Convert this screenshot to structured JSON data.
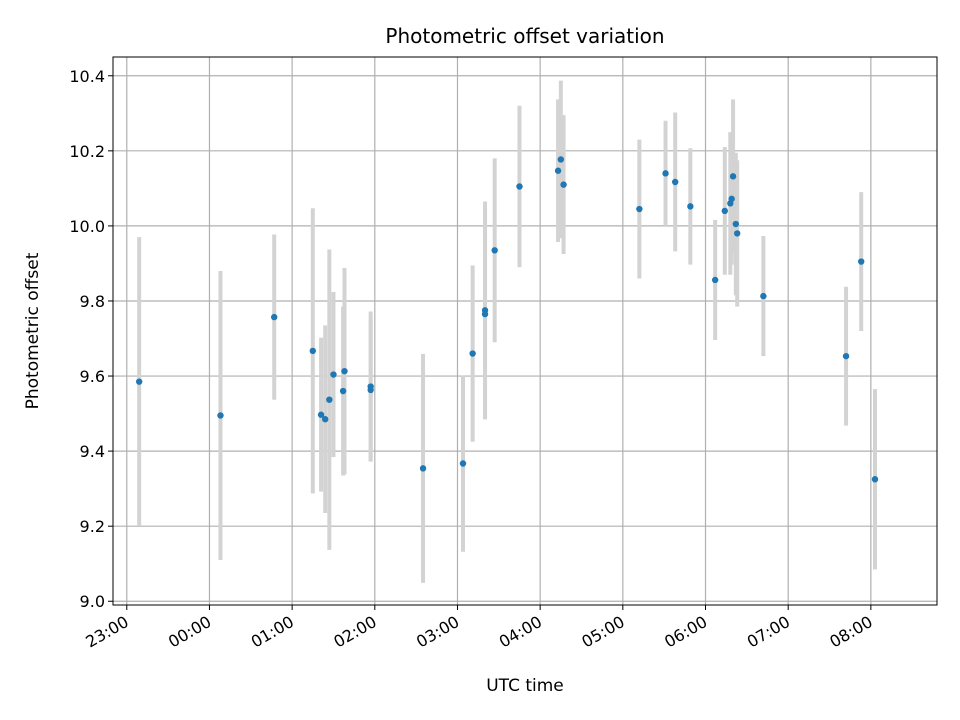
{
  "chart_data": {
    "type": "scatter",
    "title": "Photometric offset variation",
    "xlabel": "UTC time",
    "ylabel": "Photometric offset",
    "grid": true,
    "legend": "none",
    "x_unit": "UTC time (HH:MM)",
    "xlim": [
      "22:50",
      "08:48"
    ],
    "ylim": [
      8.99,
      10.45
    ],
    "x_ticks": [
      "23:00",
      "00:00",
      "01:00",
      "02:00",
      "03:00",
      "04:00",
      "05:00",
      "06:00",
      "07:00",
      "08:00"
    ],
    "y_ticks": [
      "9.0",
      "9.2",
      "9.4",
      "9.6",
      "9.8",
      "10.0",
      "10.2",
      "10.4"
    ],
    "colors": {
      "marker": "#1f77b4",
      "errorbar": "#d3d3d3",
      "grid": "#b0b0b0"
    },
    "points": [
      {
        "x": "23:09",
        "y": 9.585,
        "err": 0.385
      },
      {
        "x": "00:08",
        "y": 9.495,
        "err": 0.385
      },
      {
        "x": "00:47",
        "y": 9.757,
        "err": 0.22
      },
      {
        "x": "01:15",
        "y": 9.667,
        "err": 0.38
      },
      {
        "x": "01:21",
        "y": 9.497,
        "err": 0.205
      },
      {
        "x": "01:24",
        "y": 9.485,
        "err": 0.25
      },
      {
        "x": "01:27",
        "y": 9.537,
        "err": 0.4
      },
      {
        "x": "01:30",
        "y": 9.604,
        "err": 0.22
      },
      {
        "x": "01:37",
        "y": 9.56,
        "err": 0.225
      },
      {
        "x": "01:38",
        "y": 9.613,
        "err": 0.275
      },
      {
        "x": "01:57",
        "y": 9.572,
        "err": 0.2
      },
      {
        "x": "01:57",
        "y": 9.563,
        "err": 0.19
      },
      {
        "x": "02:35",
        "y": 9.354,
        "err": 0.305
      },
      {
        "x": "03:04",
        "y": 9.367,
        "err": 0.235
      },
      {
        "x": "03:11",
        "y": 9.66,
        "err": 0.235
      },
      {
        "x": "03:20",
        "y": 9.775,
        "err": 0.29
      },
      {
        "x": "03:20",
        "y": 9.765,
        "err": 0.28
      },
      {
        "x": "03:27",
        "y": 9.935,
        "err": 0.245
      },
      {
        "x": "03:45",
        "y": 10.105,
        "err": 0.215
      },
      {
        "x": "04:13",
        "y": 10.147,
        "err": 0.19
      },
      {
        "x": "04:15",
        "y": 10.177,
        "err": 0.21
      },
      {
        "x": "04:17",
        "y": 10.11,
        "err": 0.185
      },
      {
        "x": "05:12",
        "y": 10.045,
        "err": 0.185
      },
      {
        "x": "05:31",
        "y": 10.14,
        "err": 0.14
      },
      {
        "x": "05:38",
        "y": 10.117,
        "err": 0.185
      },
      {
        "x": "05:49",
        "y": 10.052,
        "err": 0.155
      },
      {
        "x": "06:07",
        "y": 9.856,
        "err": 0.16
      },
      {
        "x": "06:14",
        "y": 10.04,
        "err": 0.17
      },
      {
        "x": "06:18",
        "y": 10.06,
        "err": 0.19
      },
      {
        "x": "06:19",
        "y": 10.072,
        "err": 0.175
      },
      {
        "x": "06:20",
        "y": 10.132,
        "err": 0.205
      },
      {
        "x": "06:22",
        "y": 10.005,
        "err": 0.19
      },
      {
        "x": "06:23",
        "y": 9.98,
        "err": 0.195
      },
      {
        "x": "06:42",
        "y": 9.813,
        "err": 0.16
      },
      {
        "x": "07:42",
        "y": 9.653,
        "err": 0.185
      },
      {
        "x": "07:53",
        "y": 9.905,
        "err": 0.185
      },
      {
        "x": "08:03",
        "y": 9.325,
        "err": 0.24
      }
    ]
  }
}
